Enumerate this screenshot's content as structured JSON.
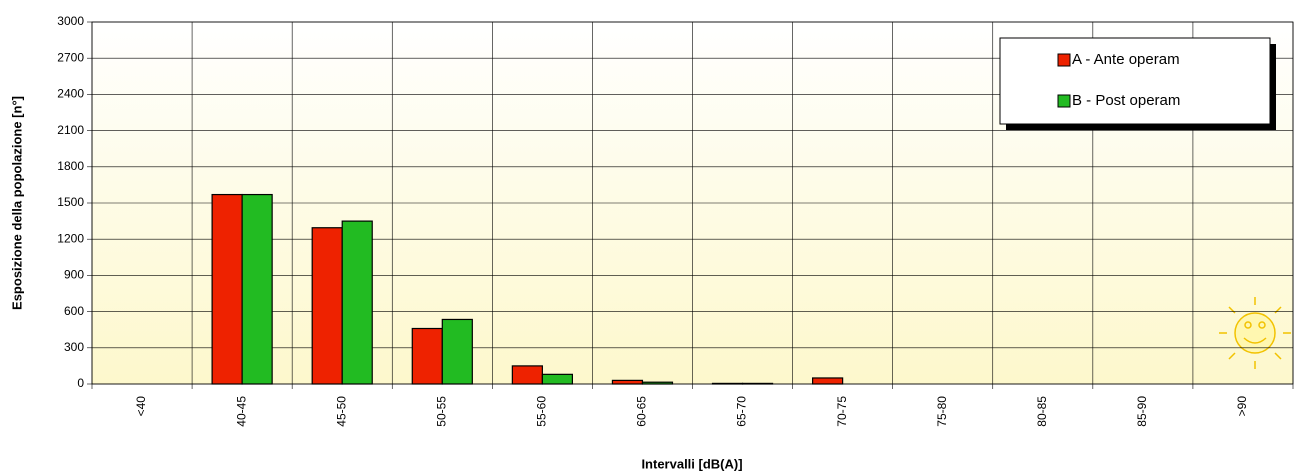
{
  "chart_data": {
    "type": "bar",
    "xlabel": "Intervalli [dB(A)]",
    "ylabel": "Esposizione della popolazione [n°]",
    "categories": [
      "<40",
      "40-45",
      "45-50",
      "50-55",
      "55-60",
      "60-65",
      "65-70",
      "70-75",
      "75-80",
      "80-85",
      "85-90",
      ">90"
    ],
    "series": [
      {
        "name": "A - Ante operam",
        "color": "#ee2200",
        "values": [
          0,
          1570,
          1295,
          460,
          150,
          30,
          5,
          50,
          0,
          0,
          0,
          0
        ]
      },
      {
        "name": "B - Post operam",
        "color": "#22bb22",
        "values": [
          0,
          1570,
          1350,
          535,
          80,
          15,
          5,
          0,
          0,
          0,
          0,
          0
        ]
      }
    ],
    "ylim": [
      0,
      3000
    ],
    "yticks": [
      0,
      300,
      600,
      900,
      1200,
      1500,
      1800,
      2100,
      2400,
      2700,
      3000
    ],
    "grid": true,
    "legend": "top-right"
  }
}
